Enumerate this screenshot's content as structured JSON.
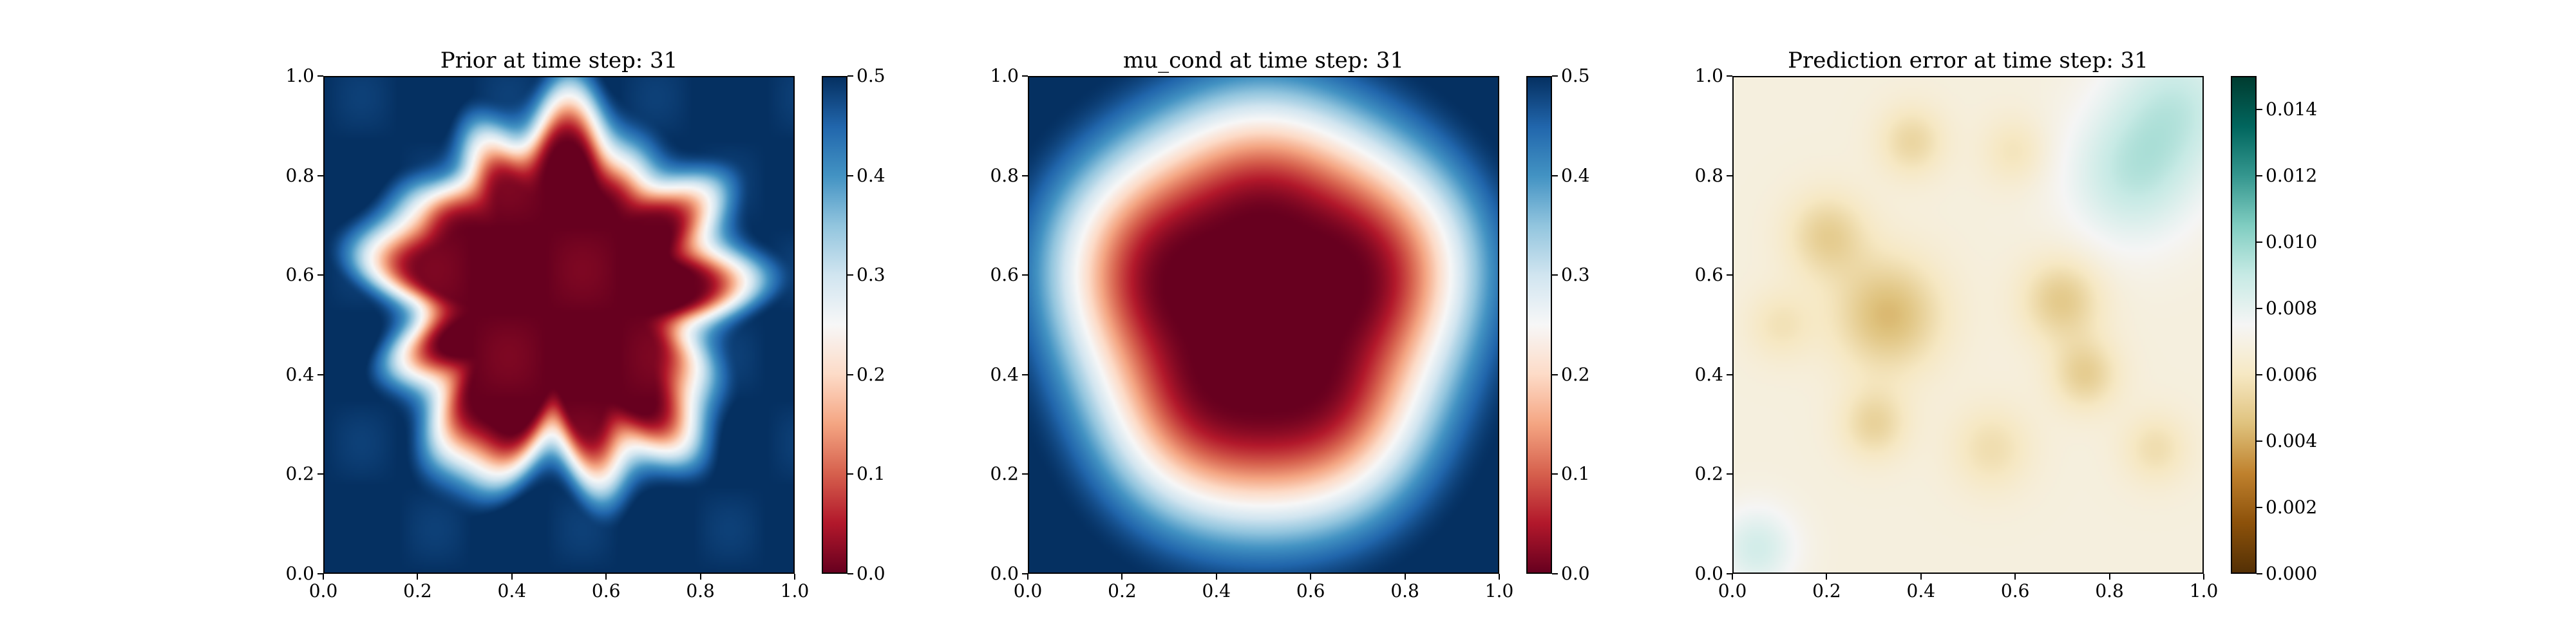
{
  "figure": {
    "panels": [
      {
        "id": "prior",
        "title": "Prior at time step: 31",
        "colormap": "RdBu",
        "field": "prior",
        "x_ticks": [
          "0.0",
          "0.2",
          "0.4",
          "0.6",
          "0.8",
          "1.0"
        ],
        "y_ticks": [
          "0.0",
          "0.2",
          "0.4",
          "0.6",
          "0.8",
          "1.0"
        ],
        "colorbar_ticks": [
          "0.0",
          "0.1",
          "0.2",
          "0.3",
          "0.4",
          "0.5"
        ],
        "colorbar_range": [
          0.0,
          0.5
        ]
      },
      {
        "id": "mu_cond",
        "title": "mu_cond at time step: 31",
        "colormap": "RdBu",
        "field": "mu_cond",
        "x_ticks": [
          "0.0",
          "0.2",
          "0.4",
          "0.6",
          "0.8",
          "1.0"
        ],
        "y_ticks": [
          "0.0",
          "0.2",
          "0.4",
          "0.6",
          "0.8",
          "1.0"
        ],
        "colorbar_ticks": [
          "0.0",
          "0.1",
          "0.2",
          "0.3",
          "0.4",
          "0.5"
        ],
        "colorbar_range": [
          0.0,
          0.5
        ]
      },
      {
        "id": "pred_error",
        "title": "Prediction error at time step: 31",
        "colormap": "BrBG",
        "field": "error",
        "x_ticks": [
          "0.0",
          "0.2",
          "0.4",
          "0.6",
          "0.8",
          "1.0"
        ],
        "y_ticks": [
          "0.0",
          "0.2",
          "0.4",
          "0.6",
          "0.8",
          "1.0"
        ],
        "colorbar_ticks": [
          "0.000",
          "0.002",
          "0.004",
          "0.006",
          "0.008",
          "0.010",
          "0.012",
          "0.014"
        ],
        "colorbar_range": [
          0.0,
          0.015
        ]
      }
    ]
  },
  "chart_data": [
    {
      "type": "heatmap",
      "title": "Prior at time step: 31",
      "xlabel": "",
      "ylabel": "",
      "xlim": [
        0.0,
        1.0
      ],
      "ylim": [
        0.0,
        1.0
      ],
      "colorbar": {
        "min": 0.0,
        "max": 0.5,
        "cmap": "RdBu"
      },
      "description_values": {
        "center_region_value": 0.0,
        "corner_value": 0.5
      }
    },
    {
      "type": "heatmap",
      "title": "mu_cond at time step: 31",
      "xlabel": "",
      "ylabel": "",
      "xlim": [
        0.0,
        1.0
      ],
      "ylim": [
        0.0,
        1.0
      ],
      "colorbar": {
        "min": 0.0,
        "max": 0.5,
        "cmap": "RdBu"
      },
      "description_values": {
        "center_region_value": 0.0,
        "corner_value": 0.5
      }
    },
    {
      "type": "heatmap",
      "title": "Prediction error at time step: 31",
      "xlabel": "",
      "ylabel": "",
      "xlim": [
        0.0,
        1.0
      ],
      "ylim": [
        0.0,
        1.0
      ],
      "colorbar": {
        "min": 0.0,
        "max": 0.015,
        "cmap": "BrBG"
      },
      "description_values": {
        "typical_value": 0.006,
        "max_region_value": 0.009
      }
    }
  ]
}
